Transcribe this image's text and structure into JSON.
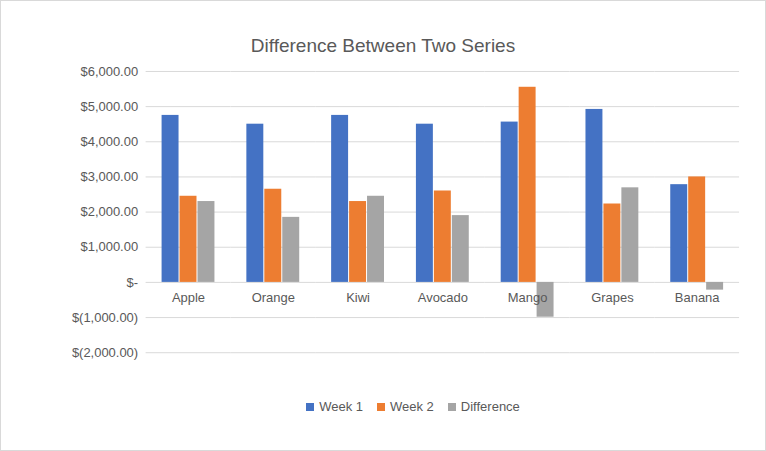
{
  "chart_data": {
    "type": "bar",
    "title": "Difference Between Two Series",
    "categories": [
      "Apple",
      "Orange",
      "Kiwi",
      "Avocado",
      "Mango",
      "Grapes",
      "Banana"
    ],
    "series": [
      {
        "name": "Week 1",
        "color": "#4472c4",
        "values": [
          4750,
          4500,
          4750,
          4500,
          4560,
          4920,
          2780
        ]
      },
      {
        "name": "Week 2",
        "color": "#ed7d31",
        "values": [
          2450,
          2650,
          2300,
          2600,
          5550,
          2230,
          3000
        ]
      },
      {
        "name": "Difference",
        "color": "#a5a5a5",
        "values": [
          2300,
          1850,
          2450,
          1900,
          -990,
          2690,
          -220
        ]
      }
    ],
    "ylim": [
      -2000,
      6000
    ],
    "yticks": [
      {
        "value": -2000,
        "label": "$(2,000.00)"
      },
      {
        "value": -1000,
        "label": "$(1,000.00)"
      },
      {
        "value": 0,
        "label": "$-"
      },
      {
        "value": 1000,
        "label": "$1,000.00"
      },
      {
        "value": 2000,
        "label": "$2,000.00"
      },
      {
        "value": 3000,
        "label": "$3,000.00"
      },
      {
        "value": 4000,
        "label": "$4,000.00"
      },
      {
        "value": 5000,
        "label": "$5,000.00"
      },
      {
        "value": 6000,
        "label": "$6,000.00"
      }
    ],
    "grid": true,
    "legend": "bottom"
  }
}
